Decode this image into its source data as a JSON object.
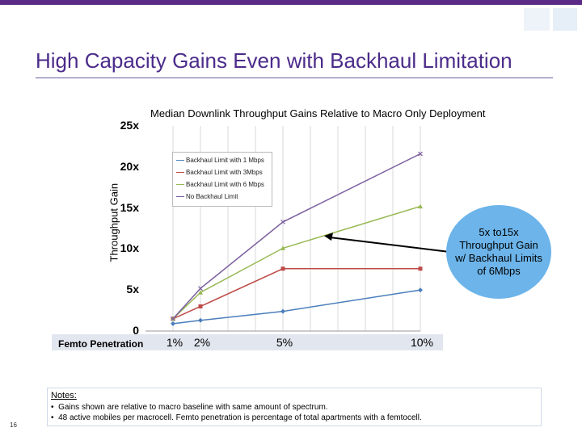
{
  "slide": {
    "title": "High Capacity Gains Even with Backhaul Limitation",
    "page_number": "16",
    "colors": {
      "accent": "#5b2a86",
      "title": "#4b2b8a",
      "callout": "#6cb4ea"
    }
  },
  "callout": {
    "text": "5x to15x Throughput Gain w/ Backhaul Limits of 6Mbps"
  },
  "notes": {
    "heading": "Notes:",
    "items": [
      "Gains shown are relative to macro baseline with same amount of spectrum.",
      "48 active mobiles per macrocell. Femto penetration is percentage of  total apartments with a femtocell."
    ]
  },
  "chart_data": {
    "type": "line",
    "title": "Median Downlink Throughput Gains Relative to Macro Only Deployment",
    "xlabel": "Femto Penetration",
    "ylabel": "Throughput Gain",
    "x": [
      1,
      2,
      5,
      10
    ],
    "x_tick_labels": [
      "1%",
      "2%",
      "5%",
      "10%"
    ],
    "y_tick_labels": [
      "0",
      "5x",
      "10x",
      "15x",
      "20x",
      "25x"
    ],
    "ylim": [
      0,
      25
    ],
    "xlim": [
      0,
      10
    ],
    "grid": true,
    "legend_position": "top-left",
    "series": [
      {
        "name": "Backhaul Limit with 1 Mbps",
        "color": "#4a7ebb",
        "marker": "diamond",
        "values": [
          0.9,
          1.3,
          2.4,
          5.0
        ]
      },
      {
        "name": "Backhaul Limit with 3Mbps",
        "color": "#be4b48",
        "marker": "square",
        "values": [
          1.5,
          3.0,
          7.6,
          7.6
        ]
      },
      {
        "name": "Backhaul Limit with 6 Mbps",
        "color": "#98b954",
        "marker": "triangle",
        "values": [
          1.5,
          4.7,
          10.1,
          15.2
        ]
      },
      {
        "name": "No Backhaul Limit",
        "color": "#7d60a0",
        "marker": "x",
        "values": [
          1.5,
          5.2,
          13.3,
          21.6
        ]
      }
    ]
  }
}
